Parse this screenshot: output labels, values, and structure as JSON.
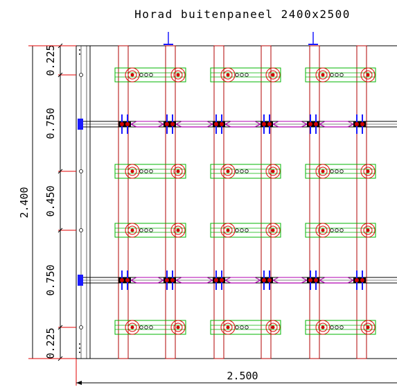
{
  "title": "Horad buitenpaneel 2400x2500",
  "dimensions": {
    "total_height": "2.400",
    "total_width": "2.500",
    "segments": [
      "0.225",
      "0.750",
      "0.450",
      "0.750",
      "0.225"
    ]
  },
  "colors": {
    "background": "#ffffff",
    "outline": "#000000",
    "dimension_line": "#000000",
    "dimension_tick": "#e00000",
    "post": "#b00000",
    "plate": "#00b400",
    "hole": "#e00000",
    "bolt": "#d00000",
    "clamp": "#1a1aff",
    "clamp_link": "#b000b0",
    "bar": "#000000"
  }
}
